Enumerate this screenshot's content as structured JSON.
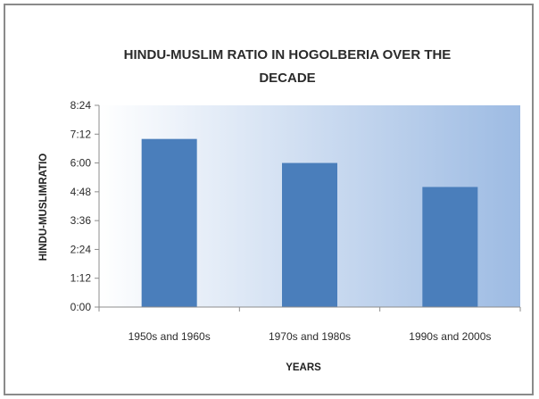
{
  "colors": {
    "bar": "#4a7ebb",
    "plot_bg_left": "#ffffff",
    "plot_bg_right": "#9dbbe3",
    "axis": "#8c8c8c"
  },
  "chart_data": {
    "type": "bar",
    "title_lines": [
      "HINDU-MUSLIM RATIO IN HOGOLBERIA OVER THE",
      "DECADE"
    ],
    "xlabel": "YEARS",
    "ylabel": "HINDU-MUSLIMRATIO",
    "categories": [
      "1950s and 1960s",
      "1970s and 1980s",
      "1990s and 2000s"
    ],
    "values": [
      7.0,
      6.0,
      5.0
    ],
    "ylim": [
      0,
      8.4
    ],
    "y_ticks": [
      0,
      1.2,
      2.4,
      3.6,
      4.8,
      6.0,
      7.2,
      8.4
    ],
    "y_tick_labels": [
      "0:00",
      "1:12",
      "2:24",
      "3:36",
      "4:48",
      "6:00",
      "7:12",
      "8:24"
    ],
    "legend": "none",
    "grid": false
  }
}
